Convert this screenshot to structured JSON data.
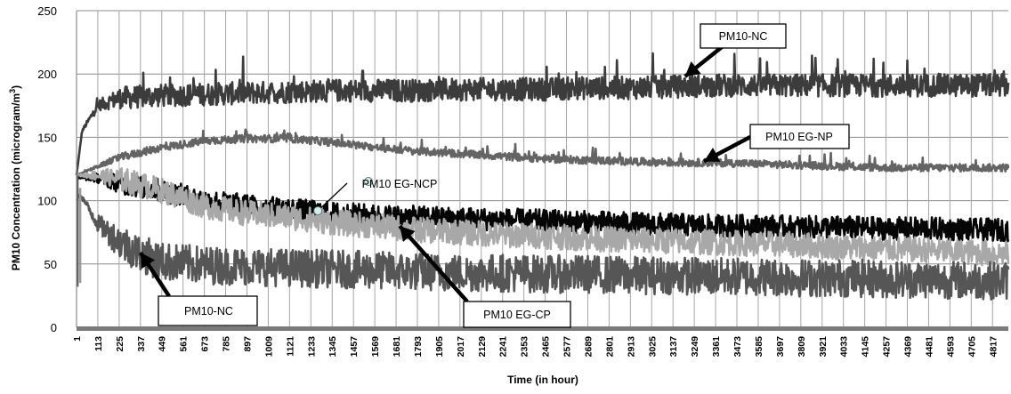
{
  "chart_data": {
    "type": "line",
    "title": "",
    "xlabel": "Time (in hour)",
    "ylabel_main": "PM10 Concentration (microgram/m",
    "ylabel_sup": "3",
    "ylabel_tail": ")",
    "ylim": [
      0,
      250
    ],
    "yticks": [
      0,
      50,
      100,
      150,
      200,
      250
    ],
    "xlim": [
      1,
      4900
    ],
    "xticks": [
      "1",
      "113",
      "225",
      "337",
      "449",
      "561",
      "673",
      "785",
      "897",
      "1009",
      "1121",
      "1233",
      "1345",
      "1457",
      "1569",
      "1681",
      "1793",
      "1905",
      "2017",
      "2129",
      "2241",
      "2353",
      "2465",
      "2577",
      "2689",
      "2801",
      "2913",
      "3025",
      "3137",
      "3249",
      "3361",
      "3473",
      "3585",
      "3697",
      "3809",
      "3921",
      "4033",
      "4145",
      "4257",
      "4369",
      "4481",
      "4593",
      "4705",
      "4817"
    ],
    "grid": true,
    "legend": "none",
    "series": [
      {
        "name": "PM10-NC",
        "role": "upper",
        "color": "#3c3c3c",
        "noise": 9,
        "spikes": 22,
        "x": [
          1,
          30,
          113,
          225,
          449,
          673,
          897,
          1121,
          1345,
          1569,
          1793,
          2017,
          2241,
          2465,
          2689,
          2913,
          3137,
          3361,
          3585,
          3809,
          4033,
          4257,
          4481,
          4705,
          4900
        ],
        "y": [
          120,
          155,
          175,
          181,
          183,
          184,
          185,
          186,
          187,
          187,
          187,
          188,
          188,
          188,
          189,
          189,
          190,
          191,
          191,
          191,
          191,
          191,
          191,
          191,
          191
        ]
      },
      {
        "name": "PM10 EG-NP",
        "color": "#646464",
        "noise": 3,
        "spikes": 8,
        "x": [
          1,
          113,
          225,
          449,
          673,
          897,
          1121,
          1345,
          1569,
          1793,
          2017,
          2241,
          2465,
          2689,
          2913,
          3137,
          3361,
          3585,
          3809,
          4033,
          4257,
          4481,
          4705,
          4900
        ],
        "y": [
          120,
          127,
          134,
          142,
          147,
          149,
          149,
          146,
          142,
          139,
          137,
          135,
          133,
          132,
          131,
          130,
          130,
          129,
          128,
          127,
          126,
          126,
          126,
          126
        ]
      },
      {
        "name": "PM10 EG-NCP",
        "color": "#050505",
        "noise": 9,
        "spikes": 0,
        "x": [
          1,
          113,
          225,
          449,
          673,
          897,
          1121,
          1345,
          1569,
          1793,
          2017,
          2241,
          2465,
          2689,
          2913,
          3137,
          3361,
          3585,
          3809,
          4033,
          4257,
          4481,
          4705,
          4900
        ],
        "y": [
          118,
          118,
          114,
          108,
          100,
          96,
          93,
          90,
          88,
          87,
          86,
          85,
          84,
          83,
          82,
          81,
          80,
          80,
          79,
          79,
          78,
          78,
          77,
          77
        ]
      },
      {
        "name": "PM10 EG-CP",
        "color": "#a8a8a8",
        "noise": 10,
        "spikes": 0,
        "x": [
          1,
          113,
          225,
          449,
          673,
          897,
          1121,
          1345,
          1569,
          1793,
          2017,
          2241,
          2465,
          2689,
          2913,
          3137,
          3361,
          3585,
          3809,
          4033,
          4257,
          4481,
          4705,
          4900
        ],
        "y": [
          120,
          120,
          117,
          108,
          96,
          90,
          87,
          83,
          80,
          77,
          75,
          73,
          72,
          70,
          69,
          68,
          67,
          66,
          65,
          63,
          62,
          61,
          59,
          58
        ]
      },
      {
        "name": "PM10-NC",
        "role": "lower",
        "color": "#565656",
        "noise": 15,
        "spikes": 0,
        "x": [
          1,
          20,
          60,
          113,
          225,
          337,
          449,
          673,
          897,
          1121,
          1345,
          1569,
          1793,
          2017,
          2241,
          2465,
          2689,
          2913,
          3137,
          3361,
          3585,
          3809,
          4033,
          4257,
          4481,
          4705,
          4900
        ],
        "y": [
          100,
          105,
          95,
          82,
          68,
          58,
          52,
          49,
          48,
          47,
          46,
          45,
          44,
          43,
          43,
          42,
          42,
          41,
          41,
          40,
          40,
          39,
          39,
          38,
          38,
          37,
          37
        ]
      }
    ],
    "annotations": [
      {
        "text": "PM10-NC",
        "target_x": 3200,
        "target_y": 198
      },
      {
        "text": "PM10 EG-NP",
        "target_x": 3300,
        "target_y": 131
      },
      {
        "text": "PM10 EG-NCP",
        "target_x": 1270,
        "target_y": 92
      },
      {
        "text": "PM10-NC",
        "target_x": 337,
        "target_y": 59
      },
      {
        "text": "PM10 EG-CP",
        "target_x": 1700,
        "target_y": 80
      }
    ]
  }
}
